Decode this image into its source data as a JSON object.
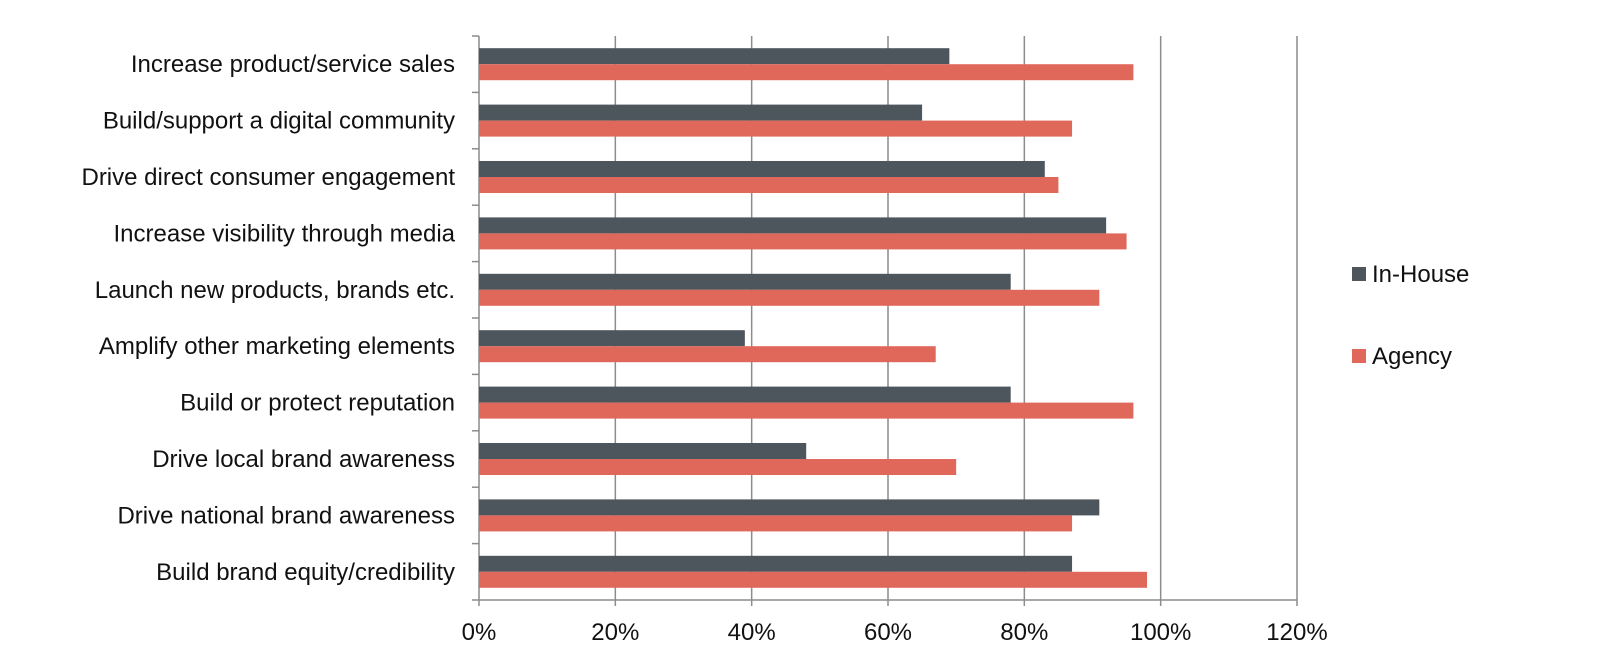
{
  "chart_data": {
    "type": "bar",
    "orientation": "horizontal",
    "categories": [
      "Increase product/service sales",
      "Build/support a digital community",
      "Drive direct consumer engagement",
      "Increase visibility through media",
      "Launch new products, brands etc.",
      "Amplify other marketing elements",
      "Build or protect reputation",
      "Drive local brand awareness",
      "Drive national brand awareness",
      "Build brand equity/credibility"
    ],
    "series": [
      {
        "name": "In-House",
        "color": "#4d555d",
        "values": [
          69,
          65,
          83,
          92,
          78,
          39,
          78,
          48,
          91,
          87
        ]
      },
      {
        "name": "Agency",
        "color": "#e0685b",
        "values": [
          96,
          87,
          85,
          95,
          91,
          67,
          96,
          70,
          87,
          98
        ]
      }
    ],
    "xlim": [
      0,
      120
    ],
    "xticks": [
      0,
      20,
      40,
      60,
      80,
      100,
      120
    ],
    "tick_labels": [
      "0%",
      "20%",
      "40%",
      "60%",
      "80%",
      "100%",
      "120%"
    ],
    "grid": true,
    "legend_position": "right"
  }
}
